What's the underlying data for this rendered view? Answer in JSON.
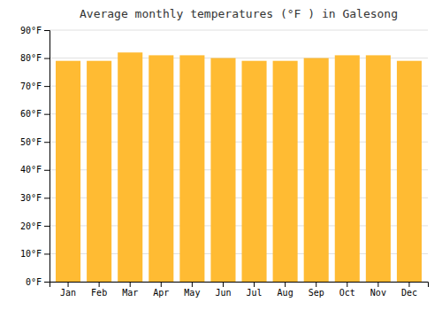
{
  "chart_data": {
    "type": "bar",
    "title": "Average monthly temperatures (°F ) in Galesong",
    "categories": [
      "Jan",
      "Feb",
      "Mar",
      "Apr",
      "May",
      "Jun",
      "Jul",
      "Aug",
      "Sep",
      "Oct",
      "Nov",
      "Dec"
    ],
    "values": [
      79,
      79,
      82,
      81,
      81,
      80,
      79,
      79,
      80,
      81,
      81,
      79
    ],
    "color": "#FFBB33",
    "ylim": [
      0,
      90
    ],
    "yticks": [
      {
        "value": 0,
        "label": "0°F"
      },
      {
        "value": 10,
        "label": "10°F"
      },
      {
        "value": 20,
        "label": "20°F"
      },
      {
        "value": 30,
        "label": "30°F"
      },
      {
        "value": 40,
        "label": "40°F"
      },
      {
        "value": 50,
        "label": "50°F"
      },
      {
        "value": 60,
        "label": "60°F"
      },
      {
        "value": 70,
        "label": "70°F"
      },
      {
        "value": 80,
        "label": "80°F"
      },
      {
        "value": 90,
        "label": "90°F"
      }
    ],
    "grid": true
  }
}
